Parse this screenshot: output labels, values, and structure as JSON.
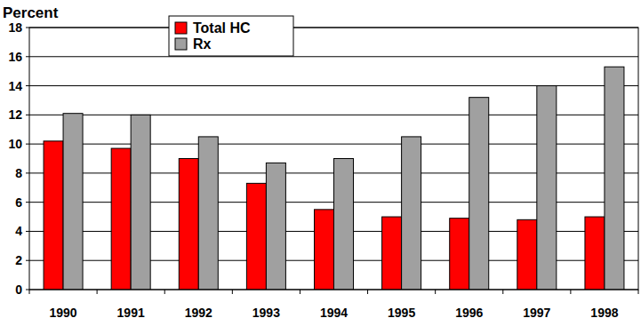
{
  "chart_data": {
    "type": "bar",
    "y_label": "Percent",
    "categories": [
      "1990",
      "1991",
      "1992",
      "1993",
      "1994",
      "1995",
      "1996",
      "1997",
      "1998"
    ],
    "series": [
      {
        "name": "Total HC",
        "color": "#ff0000",
        "values": [
          10.2,
          9.7,
          9.0,
          7.3,
          5.5,
          5.0,
          4.9,
          4.8,
          5.0
        ]
      },
      {
        "name": "Rx",
        "color": "#a0a0a0",
        "values": [
          12.1,
          12.0,
          10.5,
          8.7,
          9.0,
          10.5,
          13.2,
          14.0,
          15.3
        ]
      }
    ],
    "ylim": [
      0,
      18
    ],
    "yticks": [
      0,
      2,
      4,
      6,
      8,
      10,
      12,
      14,
      16,
      18
    ],
    "grid": true,
    "legend": "top-left"
  }
}
